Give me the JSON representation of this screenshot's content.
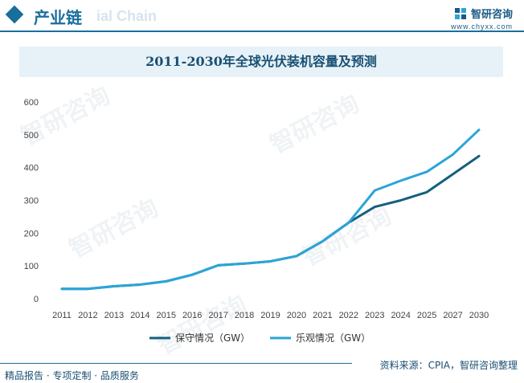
{
  "header": {
    "section_title": "产业链",
    "section_ghost": "ial Chain",
    "brand_name": "智研咨询",
    "brand_url": "www.chyxx.com"
  },
  "watermark_text": "智研咨询",
  "chart_data": {
    "type": "line",
    "title": "2011-2030年全球光伏装机容量及预测",
    "categories": [
      "2011",
      "2012",
      "2013",
      "2014",
      "2015",
      "2016",
      "2017",
      "2018",
      "2019",
      "2020",
      "2021",
      "2022",
      "2023",
      "2024",
      "2025",
      "2027",
      "2030"
    ],
    "ylim": [
      0,
      600
    ],
    "yticks": [
      0,
      100,
      200,
      300,
      400,
      500,
      600
    ],
    "grid": false,
    "legend_position": "bottom",
    "series": [
      {
        "name": "保守情况（GW）",
        "color": "#15607f",
        "values": [
          30,
          30,
          38,
          43,
          53,
          73,
          102,
          107,
          114,
          130,
          175,
          232,
          280,
          300,
          325,
          380,
          435
        ]
      },
      {
        "name": "乐观情况（GW）",
        "color": "#2aa5d8",
        "values": [
          30,
          30,
          38,
          43,
          53,
          73,
          102,
          107,
          114,
          130,
          175,
          232,
          330,
          360,
          387,
          440,
          515
        ]
      }
    ]
  },
  "footer": {
    "left": "精品报告 · 专项定制 · 品质服务",
    "source": "资料来源：CPIA，智研咨询整理"
  }
}
